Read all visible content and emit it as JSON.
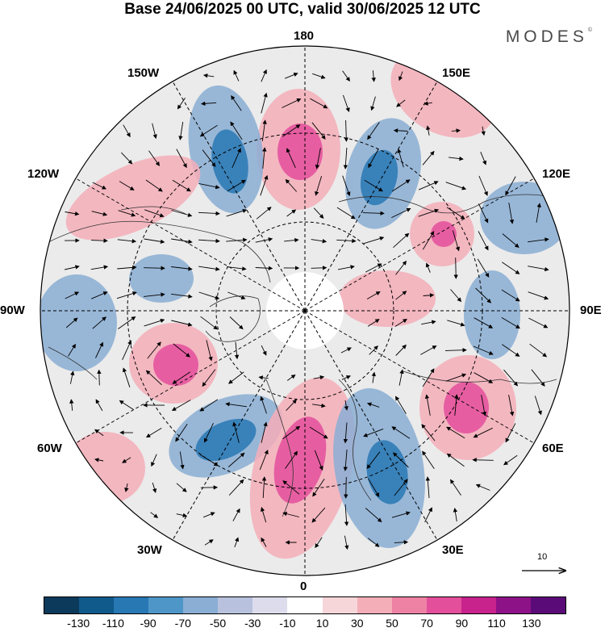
{
  "title": "Base 24/06/2025 00 UTC, valid 30/06/2025 12 UTC",
  "brand": {
    "name": "MODES",
    "mark": "©"
  },
  "longitude_labels": {
    "top": "180",
    "bottom": "0",
    "left": "90W",
    "right": "90E",
    "upper_left_1": "150W",
    "upper_left_2": "120W",
    "upper_right_1": "150E",
    "upper_right_2": "120E",
    "lower_left_1": "60W",
    "lower_left_2": "30W",
    "lower_right_1": "60E",
    "lower_right_2": "30E"
  },
  "vector_scale": {
    "label": "10"
  },
  "colorbar": {
    "colors": [
      "#0b3a5a",
      "#0f5a8a",
      "#2878b4",
      "#4f96c8",
      "#8aaed4",
      "#b8c2de",
      "#dcdcec",
      "#ffffff",
      "#f7d6da",
      "#f4aeb8",
      "#ee82a4",
      "#e34f9b",
      "#c8228d",
      "#8e1287",
      "#5b0b78"
    ],
    "tick_labels": [
      "-130",
      "-110",
      "-90",
      "-70",
      "-50",
      "-30",
      "-10",
      "10",
      "30",
      "50",
      "70",
      "90",
      "110",
      "130"
    ]
  },
  "map_features": {
    "anomaly_colors": {
      "positive": "#f4aeb8",
      "strong_positive": "#e34f9b",
      "negative": "#8aaed4",
      "strong_negative": "#2878b4",
      "neutral": "#ebebeb"
    }
  }
}
